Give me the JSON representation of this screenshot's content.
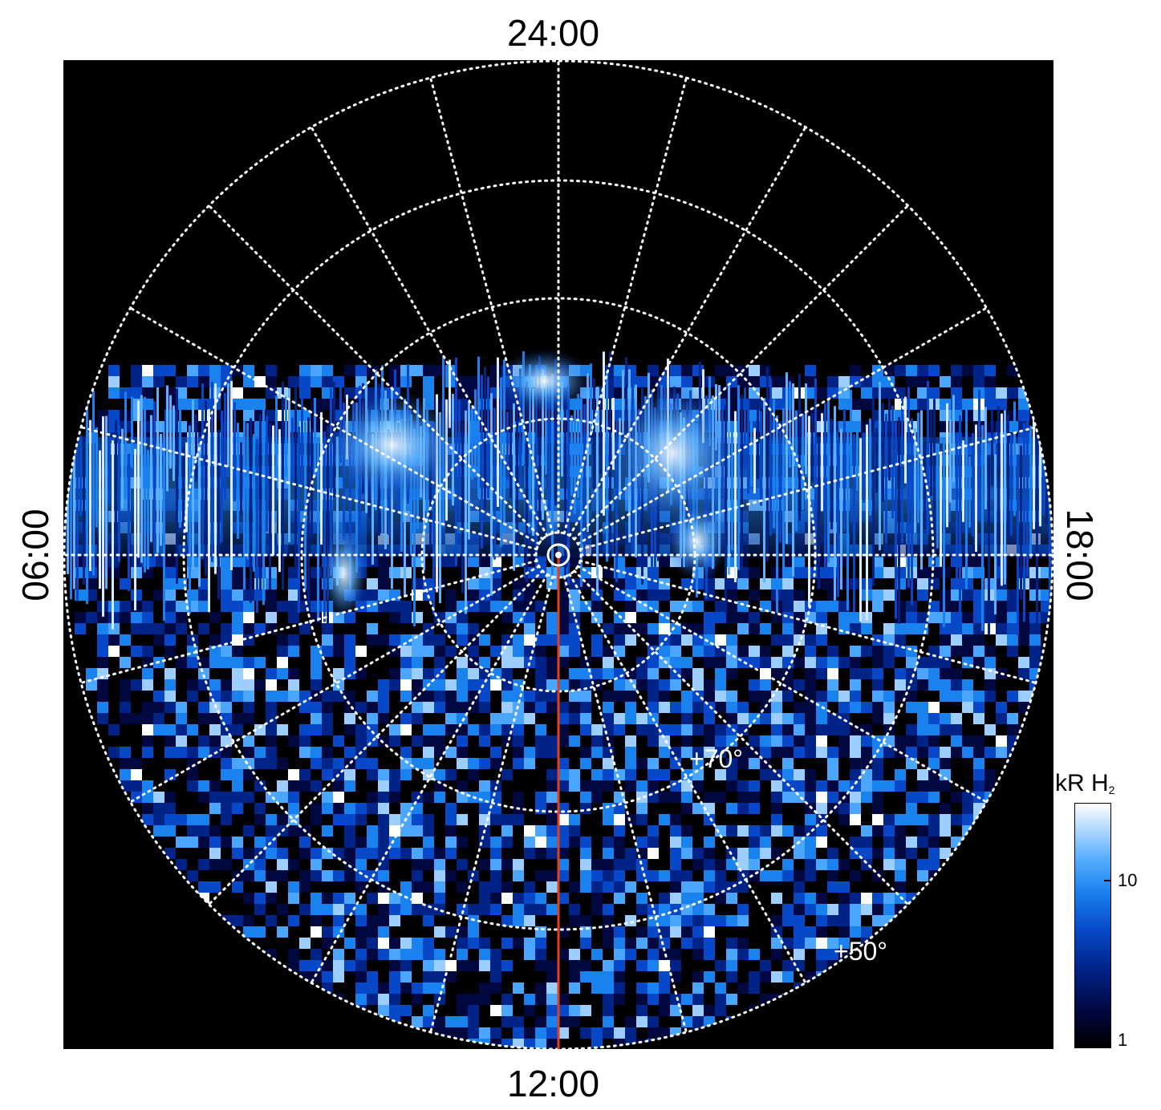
{
  "image": {
    "description_labels": {
      "top": "24:00",
      "bottom": "12:00",
      "left": "06:00",
      "right": "18:00"
    },
    "latitude_labels": [
      "+70°",
      "+50°"
    ],
    "colorbar": {
      "title": "kR H",
      "title_sub": "2",
      "ticks": [
        "10",
        "1"
      ]
    },
    "colors": {
      "background": "#000000",
      "grid": "#ffffff",
      "meridian_line": "#e0401a",
      "aurora_bright": "#ffffff",
      "aurora_mid": "#1a82ee",
      "aurora_dark": "#002387"
    }
  }
}
